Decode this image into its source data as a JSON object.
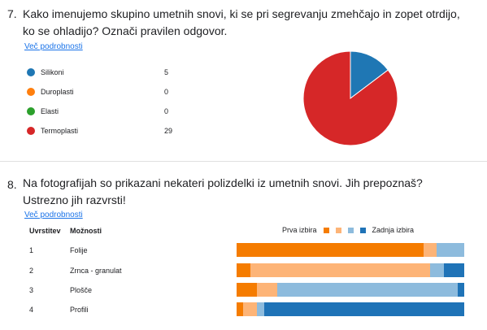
{
  "q7": {
    "number": "7.",
    "text": "Kako imenujemo skupino umetnih snovi, ki se pri segrevanju zmehčajo in zopet otrdijo, ko se ohladijo? Označi pravilen odgovor.",
    "more_link": "Več podrobnosti",
    "options": [
      {
        "label": "Silikoni",
        "count": "5",
        "color": "#1f77b4"
      },
      {
        "label": "Duroplasti",
        "count": "0",
        "color": "#ff7f0e"
      },
      {
        "label": "Elasti",
        "count": "0",
        "color": "#2ca02c"
      },
      {
        "label": "Termoplasti",
        "count": "29",
        "color": "#d62728"
      }
    ]
  },
  "q8": {
    "number": "8.",
    "text": "Na fotografijah so prikazani nekateri polizdelki iz umetnih snovi. Jih prepoznaš? Ustrezno jih razvrsti!",
    "more_link": "Več podrobnosti",
    "col_rank": "Uvrstitev",
    "col_options": "Možnosti",
    "legend_first": "Prva izbira",
    "legend_last": "Zadnja izbira",
    "scale_colors": [
      "#f57c00",
      "#fdb477",
      "#8dbbdd",
      "#1f73b7"
    ],
    "rows": [
      {
        "rank": "1",
        "option": "Folije",
        "segments": [
          82,
          6,
          12,
          0
        ]
      },
      {
        "rank": "2",
        "option": "Zrnca - granulat",
        "segments": [
          6,
          79,
          6,
          9
        ]
      },
      {
        "rank": "3",
        "option": "Plošče",
        "segments": [
          9,
          9,
          79,
          3
        ]
      },
      {
        "rank": "4",
        "option": "Profili",
        "segments": [
          3,
          6,
          3,
          88
        ]
      }
    ]
  },
  "chart_data": {
    "type": "pie",
    "categories": [
      "Silikoni",
      "Duroplasti",
      "Elasti",
      "Termoplasti"
    ],
    "values": [
      5,
      0,
      0,
      29
    ]
  }
}
